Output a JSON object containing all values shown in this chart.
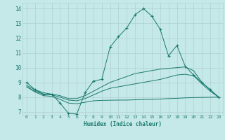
{
  "xlabel": "Humidex (Indice chaleur)",
  "background_color": "#c5e8e8",
  "grid_color": "#b0d0d0",
  "line_color": "#1a7a6e",
  "ylim": [
    6.8,
    14.4
  ],
  "xlim": [
    -0.5,
    23.5
  ],
  "yticks": [
    7,
    8,
    9,
    10,
    11,
    12,
    13,
    14
  ],
  "xticks": [
    0,
    1,
    2,
    3,
    4,
    5,
    6,
    7,
    8,
    9,
    10,
    11,
    12,
    13,
    14,
    15,
    16,
    17,
    18,
    19,
    20,
    21,
    22,
    23
  ],
  "line1_x": [
    0,
    1,
    2,
    3,
    4,
    5,
    6,
    7,
    8,
    9,
    10,
    11,
    12,
    13,
    14,
    15,
    16,
    17,
    18,
    19,
    20,
    21,
    22,
    23
  ],
  "line1_y": [
    9.0,
    8.5,
    8.2,
    8.2,
    7.6,
    6.9,
    6.85,
    8.3,
    9.1,
    9.2,
    11.4,
    12.1,
    12.7,
    13.6,
    14.0,
    13.5,
    12.6,
    10.8,
    11.5,
    10.1,
    9.5,
    9.0,
    8.5,
    8.0
  ],
  "line2_x": [
    0,
    1,
    2,
    3,
    4,
    5,
    6,
    7,
    8,
    9,
    10,
    11,
    12,
    13,
    14,
    15,
    16,
    17,
    18,
    19,
    20,
    21,
    22,
    23
  ],
  "line2_y": [
    8.8,
    8.5,
    8.3,
    8.2,
    8.1,
    7.9,
    7.9,
    8.1,
    8.4,
    8.7,
    9.0,
    9.2,
    9.4,
    9.6,
    9.7,
    9.8,
    9.9,
    9.95,
    10.0,
    10.05,
    9.8,
    9.0,
    8.5,
    8.0
  ],
  "line3_x": [
    0,
    1,
    2,
    3,
    4,
    5,
    6,
    7,
    8,
    9,
    10,
    11,
    12,
    13,
    14,
    15,
    16,
    17,
    18,
    19,
    20,
    21,
    22,
    23
  ],
  "line3_y": [
    8.7,
    8.4,
    8.2,
    8.15,
    8.0,
    7.8,
    7.75,
    7.9,
    8.15,
    8.4,
    8.6,
    8.7,
    8.8,
    8.9,
    9.0,
    9.1,
    9.2,
    9.35,
    9.5,
    9.55,
    9.45,
    8.9,
    8.4,
    8.0
  ],
  "line4_x": [
    0,
    1,
    2,
    3,
    4,
    5,
    6,
    7,
    8,
    9,
    10,
    11,
    12,
    13,
    14,
    15,
    16,
    17,
    18,
    19,
    20,
    21,
    22,
    23
  ],
  "line4_y": [
    8.7,
    8.35,
    8.1,
    8.05,
    7.85,
    7.6,
    7.55,
    7.65,
    7.75,
    7.78,
    7.79,
    7.8,
    7.8,
    7.82,
    7.84,
    7.85,
    7.87,
    7.9,
    7.92,
    7.95,
    7.97,
    7.98,
    7.99,
    8.0
  ]
}
